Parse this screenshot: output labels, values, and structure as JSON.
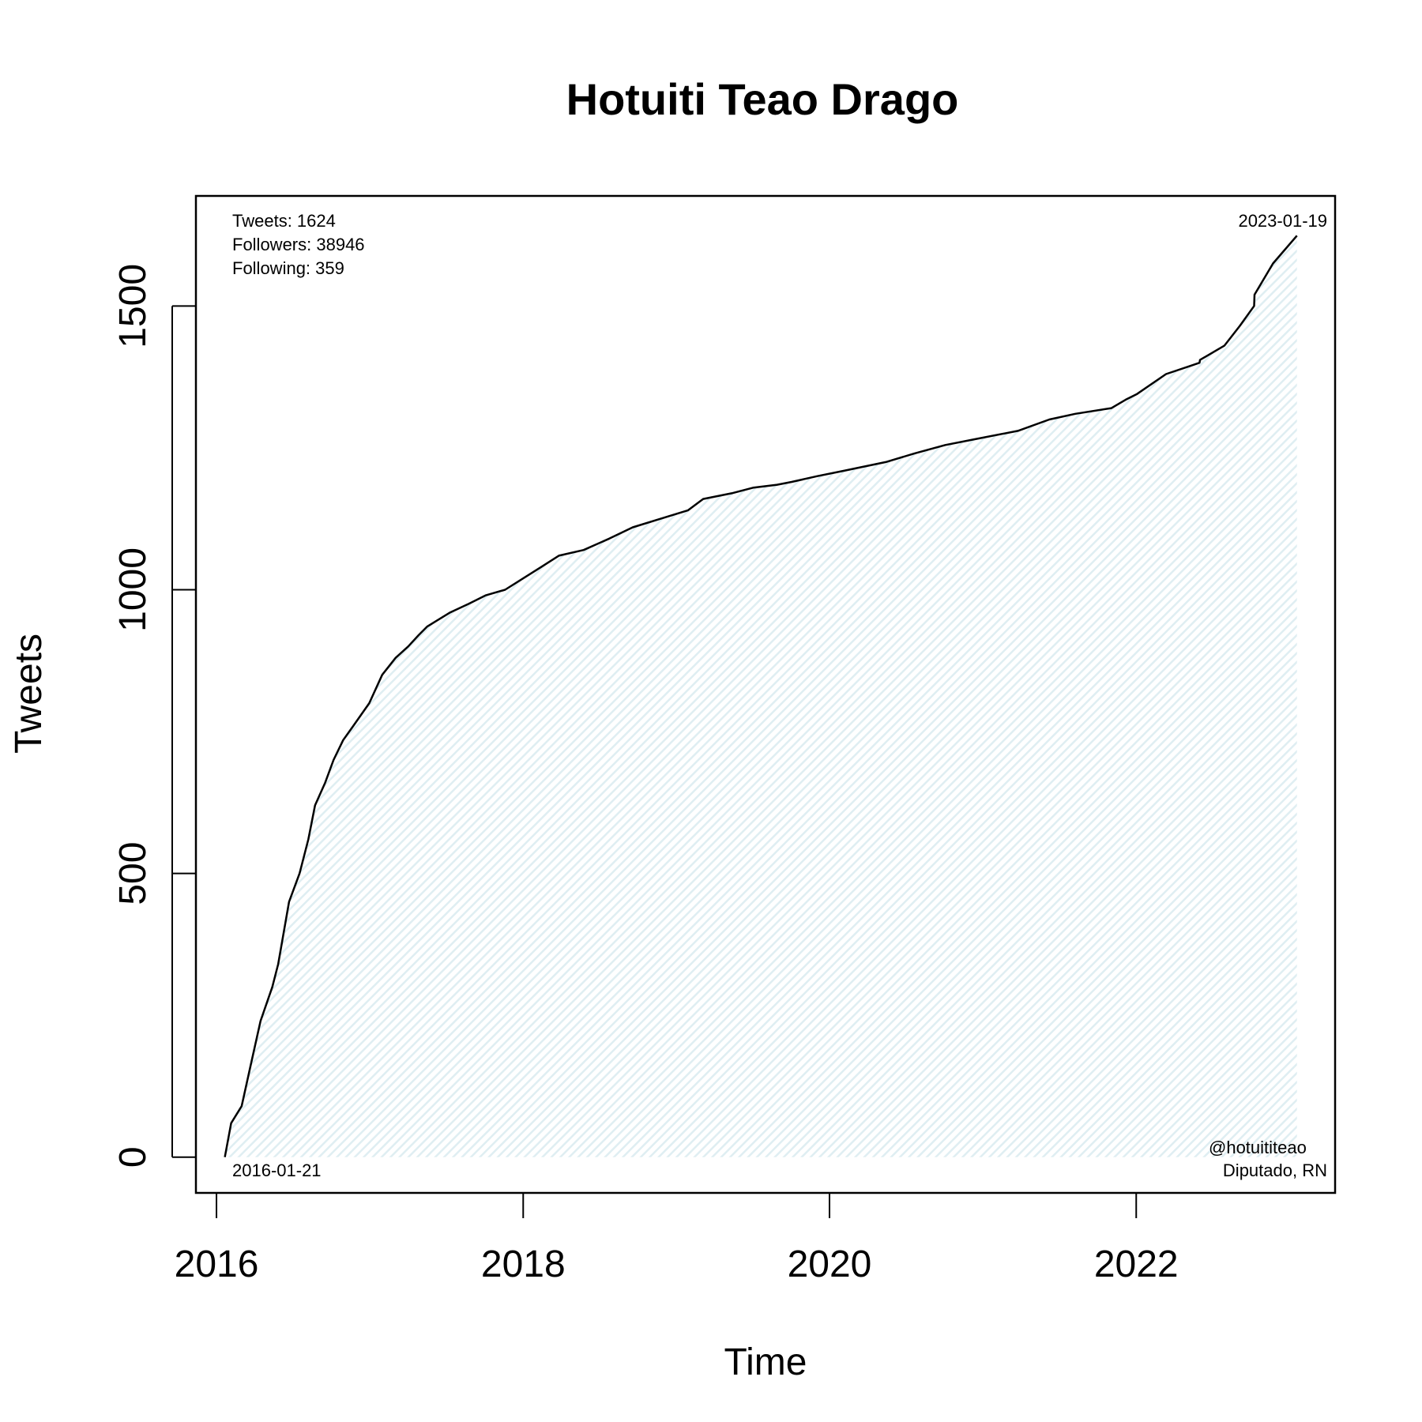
{
  "chart_data": {
    "type": "area",
    "title": "Hotuiti Teao Drago",
    "xlabel": "Time",
    "ylabel": "Tweets",
    "xlim": [
      "2015-11-13",
      "2023-04-20"
    ],
    "ylim": [
      -63,
      1694
    ],
    "x_ticks": [
      "2016",
      "2018",
      "2020",
      "2022"
    ],
    "y_ticks": [
      "0",
      "500",
      "1000",
      "1500"
    ],
    "stats": {
      "tweets": "Tweets: 1624",
      "followers": "Followers: 38946",
      "following": "Following: 359"
    },
    "start_label": "2016-01-21",
    "end_label": "2023-01-19",
    "handle": "@hotuititeao",
    "description": "Diputado, RN",
    "line_color": "#000000",
    "fill_color": "#dfeef2",
    "series": [
      {
        "x": [
          "2016-01-21",
          "2016-02-05",
          "2016-03-01",
          "2016-03-22",
          "2016-04-15",
          "2016-05-13",
          "2016-05-27",
          "2016-06-22",
          "2016-07-17",
          "2016-08-07",
          "2016-08-23",
          "2016-09-16",
          "2016-10-06",
          "2016-10-29",
          "2016-11-22",
          "2016-12-30",
          "2017-01-30",
          "2017-03-03",
          "2017-04-02",
          "2017-04-27",
          "2017-05-17",
          "2017-07-11",
          "2017-08-24",
          "2017-10-03",
          "2017-11-19",
          "2018-01-01",
          "2018-02-13",
          "2018-03-27",
          "2018-05-25",
          "2018-07-25",
          "2018-09-19",
          "2018-11-24",
          "2019-01-29",
          "2019-03-06",
          "2019-05-13",
          "2019-07-04",
          "2019-08-29",
          "2019-10-03",
          "2019-12-02",
          "2020-02-07",
          "2020-05-14",
          "2020-07-21",
          "2020-10-03",
          "2020-12-11",
          "2021-03-25",
          "2021-06-08",
          "2021-08-09",
          "2021-11-03",
          "2021-12-07",
          "2022-01-03",
          "2022-03-13",
          "2022-05-12",
          "2022-06-01",
          "2022-06-02",
          "2022-07-30",
          "2022-09-05",
          "2022-10-09",
          "2022-10-10",
          "2022-11-23",
          "2023-01-19"
        ],
        "y": [
          0,
          60,
          90,
          160,
          240,
          300,
          340,
          450,
          500,
          560,
          620,
          660,
          700,
          735,
          760,
          800,
          850,
          880,
          900,
          920,
          935,
          960,
          975,
          990,
          1000,
          1020,
          1040,
          1060,
          1070,
          1090,
          1110,
          1125,
          1140,
          1160,
          1170,
          1180,
          1185,
          1190,
          1200,
          1210,
          1225,
          1240,
          1255,
          1265,
          1280,
          1300,
          1310,
          1320,
          1335,
          1345,
          1380,
          1395,
          1400,
          1405,
          1430,
          1465,
          1500,
          1520,
          1575,
          1624
        ]
      }
    ]
  }
}
